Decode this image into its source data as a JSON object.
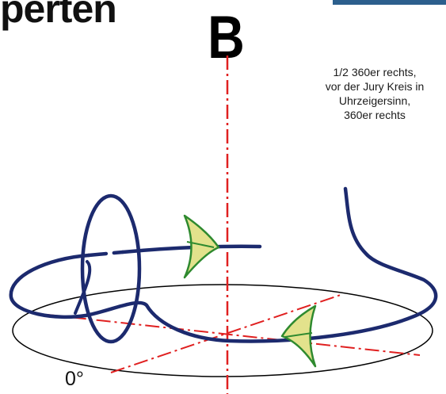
{
  "title_fragment": "perten",
  "marker_letter": "B",
  "caption_lines": [
    "1/2 360er rechts,",
    "vor der Jury Kreis in",
    "Uhrzeigersinn,",
    "360er rechts"
  ],
  "degree_label": "0°",
  "colors": {
    "flight_path": "#1c2a6e",
    "axis_line": "#e02020",
    "arrow": "#2f8a2f",
    "arrow_fill": "#e3e28c",
    "ground": "#000000",
    "header_tab": "#2c5f8d"
  },
  "icons": {
    "direction_arrow": "green-chevron-arrow-icon"
  }
}
